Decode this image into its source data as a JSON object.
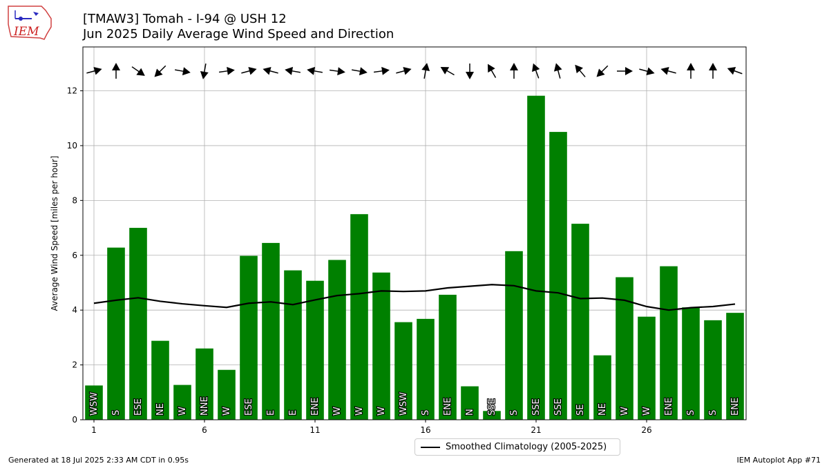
{
  "header": {
    "title_line1": "[TMAW3] Tomah - I-94 @ USH 12",
    "title_line2": "Jun 2025 Daily Average Wind Speed and Direction",
    "logo_text": "IEM"
  },
  "footer": {
    "left": "Generated at 18 Jul 2025 2:33 AM CDT in 0.95s",
    "right": "IEM Autoplot App #71"
  },
  "colors": {
    "bar": "#008000",
    "climatology": "#000000",
    "grid": "#b0b0b0"
  },
  "chart_data": {
    "type": "bar",
    "ylabel": "Average Wind Speed [miles per hour]",
    "xlim": [
      0.5,
      30.5
    ],
    "ylim": [
      0,
      13.6
    ],
    "xticks": [
      1,
      6,
      11,
      16,
      21,
      26
    ],
    "yticks": [
      0,
      2,
      4,
      6,
      8,
      10,
      12
    ],
    "grid": true,
    "legend_position": "bottom-center",
    "days": [
      1,
      2,
      3,
      4,
      5,
      6,
      7,
      8,
      9,
      10,
      11,
      12,
      13,
      14,
      15,
      16,
      17,
      18,
      19,
      20,
      21,
      22,
      23,
      24,
      25,
      26,
      27,
      28,
      29,
      30
    ],
    "speeds": [
      1.25,
      6.28,
      7.0,
      2.88,
      1.27,
      2.6,
      1.82,
      5.98,
      6.45,
      5.45,
      5.07,
      5.83,
      7.5,
      5.37,
      3.56,
      3.68,
      4.56,
      1.22,
      0.32,
      6.15,
      11.82,
      10.5,
      7.15,
      2.35,
      5.2,
      3.76,
      5.6,
      4.1,
      3.63,
      3.9
    ],
    "directions": [
      "WSW",
      "S",
      "ESE",
      "NE",
      "W",
      "NNE",
      "W",
      "ESE",
      "E",
      "E",
      "ENE",
      "W",
      "W",
      "W",
      "WSW",
      "S",
      "ENE",
      "N",
      "SSE",
      "S",
      "SSE",
      "SSE",
      "SE",
      "NE",
      "W",
      "W",
      "ENE",
      "S",
      "S",
      "ENE"
    ],
    "arrow_angles_deg": [
      -15,
      -90,
      35,
      135,
      10,
      100,
      -8,
      -15,
      -165,
      -170,
      -170,
      8,
      10,
      -8,
      -15,
      -80,
      -150,
      90,
      -120,
      -90,
      -110,
      -105,
      -130,
      135,
      0,
      15,
      -165,
      -90,
      -90,
      -160
    ],
    "series": [
      {
        "name": "Smoothed Climatology (2005-2025)",
        "values": [
          4.25,
          4.36,
          4.45,
          4.32,
          4.23,
          4.16,
          4.1,
          4.25,
          4.3,
          4.2,
          4.37,
          4.53,
          4.6,
          4.7,
          4.68,
          4.7,
          4.81,
          4.87,
          4.93,
          4.89,
          4.7,
          4.63,
          4.42,
          4.44,
          4.36,
          4.13,
          4.0,
          4.09,
          4.13,
          4.22
        ]
      }
    ]
  }
}
